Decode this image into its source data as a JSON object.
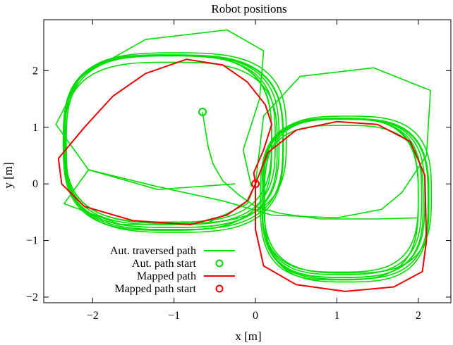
{
  "chart_data": {
    "type": "line",
    "title": "Robot positions",
    "xlabel": "x [m]",
    "ylabel": "y [m]",
    "xlim": [
      -2.6,
      2.4
    ],
    "ylim": [
      -2.1,
      2.9
    ],
    "xticks": [
      {
        "value": -2,
        "label": "−2"
      },
      {
        "value": -1,
        "label": "−1"
      },
      {
        "value": 0,
        "label": "0"
      },
      {
        "value": 1,
        "label": "1"
      },
      {
        "value": 2,
        "label": "2"
      }
    ],
    "yticks": [
      {
        "value": -2,
        "label": "−2"
      },
      {
        "value": -1,
        "label": "−1"
      },
      {
        "value": 0,
        "label": "0"
      },
      {
        "value": 1,
        "label": "1"
      },
      {
        "value": 2,
        "label": "2"
      }
    ],
    "grid": false,
    "legend_position": "bottom-left",
    "series": [
      {
        "name": "Aut. traversed path",
        "kind": "line",
        "color": "#00dd00",
        "traversal": {
          "start": [
            -0.65,
            1.27
          ],
          "lead_in": [
            [
              -0.65,
              1.27
            ],
            [
              -0.62,
              1.0
            ],
            [
              -0.58,
              0.65
            ],
            [
              -0.52,
              0.35
            ],
            [
              -0.4,
              0.05
            ],
            [
              -0.2,
              -0.2
            ],
            [
              0.0,
              -0.4
            ],
            [
              0.3,
              -0.52
            ],
            [
              0.8,
              -0.62
            ],
            [
              1.5,
              -0.62
            ],
            [
              2.0,
              -0.6
            ]
          ],
          "left_loop": {
            "cx": -1.03,
            "cy": 0.75,
            "rx": 1.32,
            "ry": 1.52
          },
          "right_loop": {
            "cx": 1.08,
            "cy": -0.25,
            "rx": 1.0,
            "ry": 1.4
          },
          "laps": [
            {
              "dx": 0.0,
              "dy": 0.0,
              "sx": 1.0,
              "sy": 1.0
            },
            {
              "dx": -0.02,
              "dy": 0.02,
              "sx": 0.98,
              "sy": 0.98
            },
            {
              "dx": 0.02,
              "dy": -0.02,
              "sx": 1.02,
              "sy": 1.01
            },
            {
              "dx": -0.04,
              "dy": 0.05,
              "sx": 0.96,
              "sy": 0.97
            },
            {
              "dx": 0.04,
              "dy": -0.04,
              "sx": 1.01,
              "sy": 1.03
            },
            {
              "dx": -0.01,
              "dy": -0.06,
              "sx": 0.99,
              "sy": 0.96
            },
            {
              "dx": 0.05,
              "dy": 0.06,
              "sx": 1.03,
              "sy": 0.99
            },
            {
              "dx": -0.05,
              "dy": -0.02,
              "sx": 0.97,
              "sy": 1.02
            }
          ],
          "outer_loops": [
            [
              [
                -0.25,
                0.0
              ],
              [
                -1.2,
                -0.1
              ],
              [
                -2.05,
                0.25
              ],
              [
                -2.45,
                1.05
              ],
              [
                -2.15,
                1.9
              ],
              [
                -1.35,
                2.55
              ],
              [
                -0.35,
                2.72
              ],
              [
                0.1,
                2.35
              ],
              [
                0.05,
                1.5
              ],
              [
                -0.15,
                0.6
              ],
              [
                -0.05,
                -0.05
              ]
            ],
            [
              [
                0.0,
                0.0
              ],
              [
                0.1,
                1.2
              ],
              [
                0.55,
                1.9
              ],
              [
                1.45,
                2.05
              ],
              [
                2.15,
                1.65
              ],
              [
                2.1,
                0.5
              ],
              [
                1.8,
                -0.15
              ],
              [
                1.55,
                -0.45
              ],
              [
                1.0,
                -0.6
              ],
              [
                0.2,
                -0.55
              ],
              [
                -0.4,
                -0.3
              ],
              [
                -1.2,
                -0.05
              ],
              [
                -2.05,
                0.25
              ],
              [
                -2.35,
                -0.35
              ],
              [
                -1.65,
                -0.72
              ],
              [
                -0.6,
                -0.7
              ],
              [
                -0.1,
                -0.35
              ],
              [
                0.0,
                0.0
              ]
            ]
          ]
        }
      },
      {
        "name": "Aut. path start",
        "kind": "marker",
        "color": "#00dd00",
        "x": [
          -0.65
        ],
        "y": [
          1.27
        ]
      },
      {
        "name": "Mapped path",
        "kind": "line",
        "color": "#ee0000",
        "x": [
          0.0,
          -0.1,
          -0.35,
          -0.8,
          -1.5,
          -2.1,
          -2.38,
          -2.42,
          -2.1,
          -1.75,
          -1.35,
          -0.85,
          -0.4,
          -0.1,
          0.12,
          0.2,
          0.1,
          -0.02,
          0.0,
          0.15,
          0.5,
          1.0,
          1.5,
          1.9,
          2.08,
          2.1,
          2.05,
          1.7,
          1.1,
          0.5,
          0.1,
          0.0,
          0.0
        ],
        "y": [
          0.0,
          -0.3,
          -0.55,
          -0.72,
          -0.65,
          -0.4,
          0.0,
          0.45,
          1.0,
          1.55,
          1.95,
          2.2,
          2.1,
          1.8,
          1.4,
          1.05,
          0.6,
          0.2,
          0.0,
          0.55,
          0.95,
          1.1,
          1.05,
          0.75,
          0.15,
          -1.0,
          -1.55,
          -1.82,
          -1.9,
          -1.78,
          -1.45,
          -0.8,
          0.0
        ]
      },
      {
        "name": "Mapped path start",
        "kind": "marker",
        "color": "#ee0000",
        "x": [
          0.0
        ],
        "y": [
          0.0
        ]
      }
    ]
  }
}
